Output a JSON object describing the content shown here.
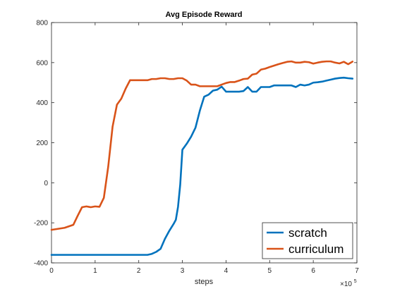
{
  "chart_data": {
    "type": "line",
    "title": "Avg Episode Reward",
    "xlabel": "steps",
    "ylabel": "",
    "x_exponent_label": "×10",
    "x_exponent_power": "5",
    "xlim": [
      0,
      7
    ],
    "ylim": [
      -400,
      800
    ],
    "x_ticks": [
      0,
      1,
      2,
      3,
      4,
      5,
      6,
      7
    ],
    "x_tick_labels": [
      "0",
      "1",
      "2",
      "3",
      "4",
      "5",
      "6",
      "7"
    ],
    "y_ticks": [
      -400,
      -200,
      0,
      200,
      400,
      600,
      800
    ],
    "y_tick_labels": [
      "-400",
      "-200",
      "0",
      "200",
      "400",
      "600",
      "800"
    ],
    "grid": false,
    "legend_position": "bottom-right",
    "series": [
      {
        "name": "scratch",
        "color": "#0072BD",
        "x": [
          0,
          0.5,
          1.0,
          1.5,
          2.0,
          2.2,
          2.3,
          2.4,
          2.5,
          2.6,
          2.7,
          2.8,
          2.85,
          2.9,
          2.95,
          3.0,
          3.1,
          3.2,
          3.3,
          3.4,
          3.5,
          3.6,
          3.7,
          3.8,
          3.9,
          4.0,
          4.1,
          4.2,
          4.3,
          4.4,
          4.5,
          4.6,
          4.7,
          4.8,
          4.9,
          5.0,
          5.1,
          5.2,
          5.3,
          5.4,
          5.5,
          5.6,
          5.7,
          5.8,
          5.9,
          6.0,
          6.1,
          6.2,
          6.3,
          6.4,
          6.5,
          6.6,
          6.7,
          6.8,
          6.9
        ],
        "y": [
          -360,
          -360,
          -360,
          -360,
          -360,
          -360,
          -355,
          -345,
          -330,
          -280,
          -240,
          -205,
          -185,
          -120,
          -10,
          165,
          195,
          230,
          275,
          360,
          430,
          440,
          460,
          465,
          480,
          455,
          455,
          455,
          455,
          458,
          478,
          455,
          455,
          478,
          478,
          478,
          486,
          486,
          486,
          486,
          486,
          478,
          490,
          486,
          490,
          500,
          502,
          505,
          510,
          515,
          520,
          523,
          525,
          522,
          520
        ]
      },
      {
        "name": "curriculum",
        "color": "#D95319",
        "x": [
          0,
          0.3,
          0.5,
          0.6,
          0.7,
          0.8,
          0.9,
          1.0,
          1.1,
          1.2,
          1.3,
          1.4,
          1.5,
          1.6,
          1.7,
          1.8,
          1.9,
          2.0,
          2.1,
          2.2,
          2.3,
          2.4,
          2.5,
          2.6,
          2.7,
          2.8,
          2.9,
          3.0,
          3.1,
          3.2,
          3.3,
          3.4,
          3.5,
          3.6,
          3.7,
          3.8,
          3.9,
          4.0,
          4.1,
          4.2,
          4.3,
          4.4,
          4.5,
          4.6,
          4.7,
          4.8,
          4.9,
          5.0,
          5.1,
          5.2,
          5.3,
          5.4,
          5.5,
          5.6,
          5.7,
          5.8,
          5.9,
          6.0,
          6.1,
          6.2,
          6.3,
          6.4,
          6.5,
          6.6,
          6.7,
          6.8,
          6.9
        ],
        "y": [
          -235,
          -225,
          -210,
          -165,
          -122,
          -118,
          -122,
          -118,
          -120,
          -75,
          80,
          280,
          390,
          420,
          470,
          512,
          512,
          512,
          512,
          512,
          518,
          518,
          522,
          522,
          518,
          518,
          522,
          522,
          510,
          490,
          490,
          482,
          482,
          482,
          482,
          482,
          490,
          498,
          503,
          503,
          510,
          518,
          520,
          540,
          545,
          565,
          570,
          578,
          585,
          592,
          598,
          604,
          606,
          600,
          600,
          604,
          602,
          595,
          600,
          604,
          606,
          606,
          600,
          596,
          604,
          592,
          605
        ]
      }
    ]
  }
}
